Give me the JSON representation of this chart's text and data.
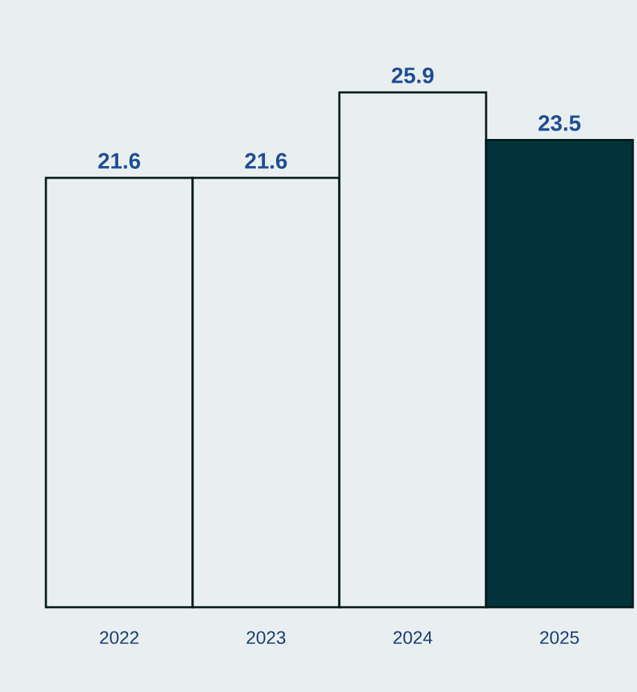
{
  "chart_data": {
    "type": "bar",
    "categories": [
      "2022",
      "2023",
      "2024",
      "2025"
    ],
    "values": [
      21.6,
      21.6,
      25.9,
      23.5
    ],
    "colors": [
      "#e9eff0",
      "#e9eff0",
      "#e9eff0",
      "#03333a"
    ],
    "data_labels": true
  }
}
